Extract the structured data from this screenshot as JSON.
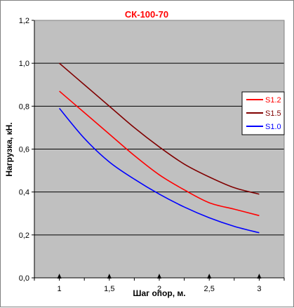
{
  "chart_data": {
    "type": "line",
    "title": "СК-100-70",
    "xlabel": "Шаг опор, м.",
    "ylabel": "Нагрузка, кН.",
    "x": [
      1,
      1.25,
      1.5,
      1.75,
      2,
      2.25,
      2.5,
      2.75,
      3
    ],
    "xticks": [
      "1",
      "1,5",
      "2",
      "2,5",
      "3"
    ],
    "xtick_values": [
      1,
      1.5,
      2,
      2.5,
      3
    ],
    "xlim": [
      0.75,
      3.25
    ],
    "yticks": [
      "0,0",
      "0,2",
      "0,4",
      "0,6",
      "0,8",
      "1,0",
      "1,2"
    ],
    "ylim": [
      0,
      1.2
    ],
    "grid": "horizontal",
    "plot_background": "#c0c0c0",
    "legend_position": "right",
    "series": [
      {
        "name": "S1.2",
        "color": "#ff0000",
        "values": [
          0.87,
          0.77,
          0.67,
          0.57,
          0.48,
          0.41,
          0.35,
          0.32,
          0.29
        ]
      },
      {
        "name": "S1.5",
        "color": "#800000",
        "values": [
          1.0,
          0.9,
          0.8,
          0.7,
          0.61,
          0.53,
          0.47,
          0.42,
          0.39
        ]
      },
      {
        "name": "S1.0",
        "color": "#0000ff",
        "values": [
          0.79,
          0.65,
          0.54,
          0.46,
          0.39,
          0.33,
          0.28,
          0.24,
          0.21
        ]
      }
    ]
  }
}
